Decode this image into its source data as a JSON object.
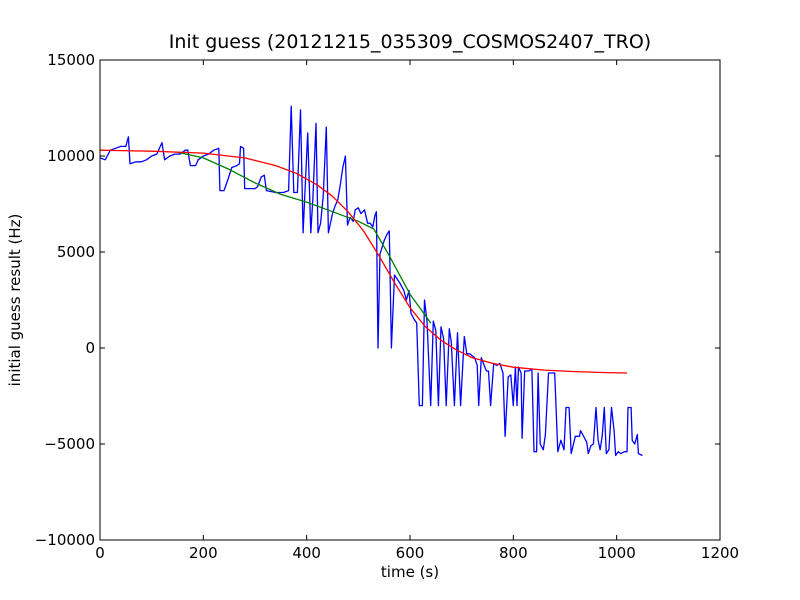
{
  "chart_data": {
    "type": "line",
    "title": "Init guess (20121215_035309_COSMOS2407_TRO)",
    "xlabel": "time (s)",
    "ylabel": "initial guess result (Hz)",
    "xlim": [
      0,
      1200
    ],
    "ylim": [
      -10000,
      15000
    ],
    "xticks": [
      0,
      200,
      400,
      600,
      800,
      1000,
      1200
    ],
    "yticks": [
      -10000,
      -5000,
      0,
      5000,
      10000,
      15000
    ],
    "grid": false,
    "legend": "none",
    "series": [
      {
        "color": "#0000ff",
        "points": [
          [
            0,
            9900
          ],
          [
            10,
            9800
          ],
          [
            20,
            10300
          ],
          [
            30,
            10400
          ],
          [
            40,
            10500
          ],
          [
            50,
            10500
          ],
          [
            55,
            11000
          ],
          [
            58,
            9600
          ],
          [
            70,
            9700
          ],
          [
            80,
            9700
          ],
          [
            90,
            9800
          ],
          [
            100,
            10000
          ],
          [
            110,
            10100
          ],
          [
            120,
            10700
          ],
          [
            125,
            9800
          ],
          [
            135,
            10000
          ],
          [
            145,
            10100
          ],
          [
            155,
            10100
          ],
          [
            165,
            10300
          ],
          [
            170,
            10300
          ],
          [
            175,
            9500
          ],
          [
            185,
            9500
          ],
          [
            190,
            9800
          ],
          [
            200,
            10000
          ],
          [
            210,
            10100
          ],
          [
            220,
            10300
          ],
          [
            230,
            10400
          ],
          [
            232,
            8200
          ],
          [
            240,
            8200
          ],
          [
            248,
            8800
          ],
          [
            255,
            9400
          ],
          [
            265,
            9500
          ],
          [
            270,
            9600
          ],
          [
            272,
            10500
          ],
          [
            278,
            10400
          ],
          [
            280,
            8300
          ],
          [
            290,
            8300
          ],
          [
            300,
            8300
          ],
          [
            305,
            8400
          ],
          [
            312,
            8900
          ],
          [
            318,
            9000
          ],
          [
            322,
            8200
          ],
          [
            340,
            8100
          ],
          [
            355,
            8100
          ],
          [
            365,
            8200
          ],
          [
            370,
            12600
          ],
          [
            375,
            8100
          ],
          [
            382,
            8100
          ],
          [
            388,
            12400
          ],
          [
            393,
            6000
          ],
          [
            397,
            8300
          ],
          [
            402,
            11200
          ],
          [
            408,
            6000
          ],
          [
            412,
            7800
          ],
          [
            418,
            11700
          ],
          [
            422,
            6000
          ],
          [
            427,
            6500
          ],
          [
            432,
            7900
          ],
          [
            438,
            11500
          ],
          [
            442,
            6000
          ],
          [
            450,
            7000
          ],
          [
            455,
            7400
          ],
          [
            460,
            7700
          ],
          [
            465,
            8500
          ],
          [
            470,
            9400
          ],
          [
            475,
            10000
          ],
          [
            479,
            6400
          ],
          [
            484,
            6800
          ],
          [
            490,
            6600
          ],
          [
            494,
            7200
          ],
          [
            500,
            7300
          ],
          [
            505,
            7000
          ],
          [
            512,
            7200
          ],
          [
            518,
            6500
          ],
          [
            523,
            6500
          ],
          [
            528,
            6300
          ],
          [
            532,
            6900
          ],
          [
            535,
            7100
          ],
          [
            538,
            0
          ],
          [
            542,
            4900
          ],
          [
            550,
            5600
          ],
          [
            555,
            5900
          ],
          [
            560,
            6100
          ],
          [
            564,
            0
          ],
          [
            570,
            3800
          ],
          [
            580,
            3400
          ],
          [
            588,
            3000
          ],
          [
            593,
            2500
          ],
          [
            598,
            3000
          ],
          [
            602,
            1800
          ],
          [
            608,
            1500
          ],
          [
            613,
            1300
          ],
          [
            618,
            -3000
          ],
          [
            624,
            -3000
          ],
          [
            628,
            2500
          ],
          [
            633,
            1400
          ],
          [
            640,
            -3000
          ],
          [
            645,
            1400
          ],
          [
            650,
            900
          ],
          [
            655,
            -3000
          ],
          [
            660,
            1100
          ],
          [
            665,
            500
          ],
          [
            670,
            -3000
          ],
          [
            676,
            1000
          ],
          [
            680,
            300
          ],
          [
            686,
            -3000
          ],
          [
            692,
            800
          ],
          [
            698,
            -3000
          ],
          [
            705,
            600
          ],
          [
            710,
            -300
          ],
          [
            716,
            -300
          ],
          [
            720,
            -400
          ],
          [
            725,
            -500
          ],
          [
            730,
            -900
          ],
          [
            733,
            -3000
          ],
          [
            738,
            -500
          ],
          [
            742,
            -800
          ],
          [
            745,
            -1000
          ],
          [
            748,
            -1200
          ],
          [
            752,
            -1200
          ],
          [
            756,
            -3000
          ],
          [
            762,
            -800
          ],
          [
            768,
            -900
          ],
          [
            774,
            -800
          ],
          [
            780,
            -1300
          ],
          [
            784,
            -4600
          ],
          [
            790,
            -1500
          ],
          [
            795,
            -1400
          ],
          [
            800,
            -3000
          ],
          [
            804,
            -1000
          ],
          [
            807,
            -3000
          ],
          [
            810,
            -1000
          ],
          [
            815,
            -1300
          ],
          [
            817,
            -4700
          ],
          [
            822,
            -1200
          ],
          [
            830,
            -1200
          ],
          [
            836,
            -1100
          ],
          [
            840,
            -5400
          ],
          [
            845,
            -5400
          ],
          [
            848,
            -1300
          ],
          [
            852,
            -5000
          ],
          [
            858,
            -5300
          ],
          [
            862,
            -4500
          ],
          [
            868,
            -1300
          ],
          [
            875,
            -1300
          ],
          [
            880,
            -1300
          ],
          [
            886,
            -5400
          ],
          [
            892,
            -4800
          ],
          [
            898,
            -5300
          ],
          [
            902,
            -3100
          ],
          [
            908,
            -3100
          ],
          [
            912,
            -5500
          ],
          [
            920,
            -4600
          ],
          [
            928,
            -4600
          ],
          [
            930,
            -4300
          ],
          [
            938,
            -4700
          ],
          [
            942,
            -4900
          ],
          [
            945,
            -5500
          ],
          [
            950,
            -5100
          ],
          [
            955,
            -5000
          ],
          [
            960,
            -3100
          ],
          [
            964,
            -4800
          ],
          [
            968,
            -5300
          ],
          [
            972,
            -4600
          ],
          [
            976,
            -3100
          ],
          [
            980,
            -5500
          ],
          [
            985,
            -5300
          ],
          [
            990,
            -3100
          ],
          [
            995,
            -4300
          ],
          [
            998,
            -5600
          ],
          [
            1003,
            -5400
          ],
          [
            1008,
            -5500
          ],
          [
            1015,
            -5400
          ],
          [
            1020,
            -5400
          ],
          [
            1022,
            -3100
          ],
          [
            1028,
            -3100
          ],
          [
            1030,
            -4800
          ],
          [
            1035,
            -5000
          ],
          [
            1040,
            -4500
          ],
          [
            1042,
            -5500
          ],
          [
            1050,
            -5600
          ]
        ]
      },
      {
        "color": "#008000",
        "points": [
          [
            150,
            10200
          ],
          [
            200,
            9900
          ],
          [
            250,
            9300
          ],
          [
            300,
            8600
          ],
          [
            350,
            8000
          ],
          [
            400,
            7600
          ],
          [
            450,
            7100
          ],
          [
            500,
            6600
          ],
          [
            530,
            6200
          ],
          [
            560,
            4800
          ],
          [
            600,
            2800
          ],
          [
            640,
            1300
          ]
        ]
      },
      {
        "color": "#ff0000",
        "points": [
          [
            0,
            10300
          ],
          [
            100,
            10250
          ],
          [
            200,
            10150
          ],
          [
            280,
            9900
          ],
          [
            340,
            9500
          ],
          [
            380,
            9100
          ],
          [
            420,
            8500
          ],
          [
            450,
            7900
          ],
          [
            480,
            7100
          ],
          [
            510,
            6100
          ],
          [
            540,
            4800
          ],
          [
            570,
            3400
          ],
          [
            600,
            2100
          ],
          [
            630,
            1100
          ],
          [
            660,
            400
          ],
          [
            690,
            -100
          ],
          [
            720,
            -500
          ],
          [
            760,
            -800
          ],
          [
            800,
            -1000
          ],
          [
            860,
            -1150
          ],
          [
            920,
            -1230
          ],
          [
            980,
            -1280
          ],
          [
            1020,
            -1300
          ]
        ]
      }
    ]
  }
}
